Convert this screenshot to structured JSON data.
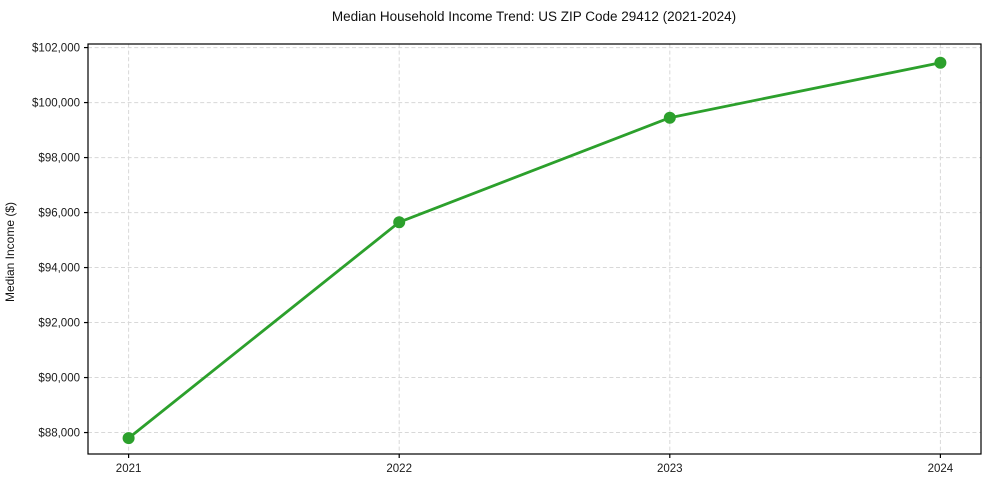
{
  "figure": {
    "background": "#ffffff"
  },
  "chart_data": {
    "type": "line",
    "title": "Median Household Income Trend: US ZIP Code 29412 (2021-2024)",
    "xlabel": "",
    "ylabel": "Median Income ($)",
    "categories": [
      "2021",
      "2022",
      "2023",
      "2024"
    ],
    "series": [
      {
        "name": "median-household-income",
        "values": [
          87800,
          95650,
          99450,
          101450
        ],
        "color": "#2ca02c",
        "marker": "circle",
        "marker_radius": 6,
        "line_width": 2.8
      }
    ],
    "ytick_values": [
      88000,
      90000,
      92000,
      94000,
      96000,
      98000,
      100000,
      102000
    ],
    "ytick_labels": [
      "$88,000",
      "$90,000",
      "$92,000",
      "$94,000",
      "$96,000",
      "$98,000",
      "$100,000",
      "$102,000"
    ],
    "ylim": [
      87220,
      102130
    ],
    "grid": {
      "show": true,
      "orientation": "both",
      "style": "dashed",
      "color": "#d8d8d8",
      "dash": "4 2.6"
    },
    "axes": {
      "spine_color": "#000000",
      "tick_color": "#000000",
      "text_color": "#1a1a1a"
    },
    "legend": {
      "show": false,
      "position": "none"
    }
  }
}
